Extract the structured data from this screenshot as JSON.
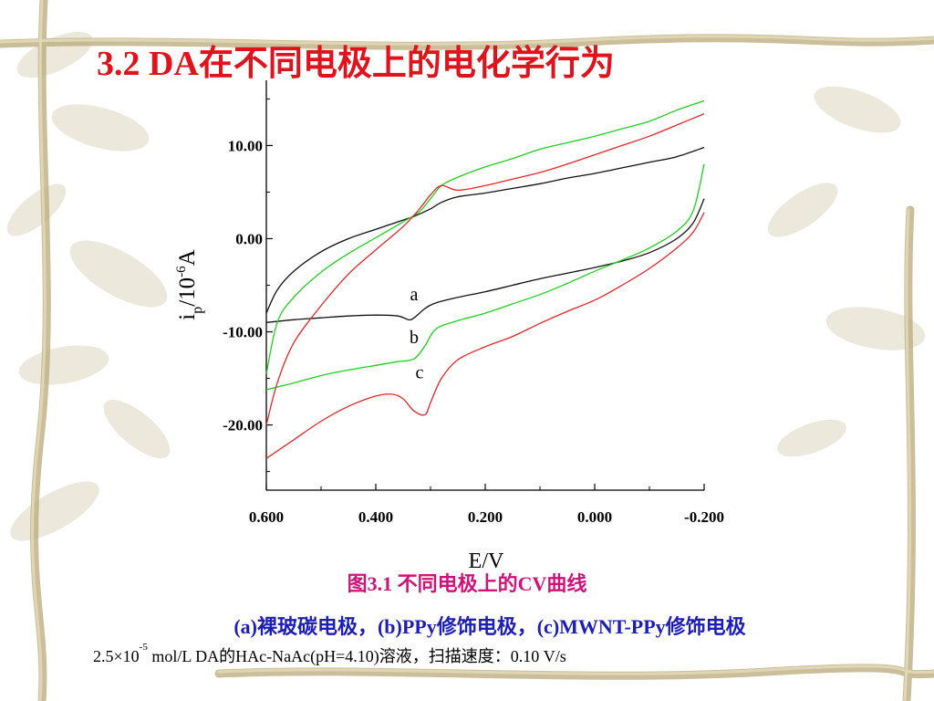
{
  "slide": {
    "title": "3.2  DA在不同电极上的电化学行为"
  },
  "captions": {
    "figure": "图3.1 不同电极上的CV曲线",
    "electrodes": "(a)裸玻碳电极，(b)PPy修饰电极，(c)MWNT-PPy修饰电极",
    "conditions_prefix": "2.5×10",
    "conditions_exp": "-5",
    "conditions_suffix": " mol/L DA的HAc-NaAc(pH=4.10)溶液，扫描速度：0.10 V/s"
  },
  "chart_data": {
    "type": "line",
    "title": "",
    "xlabel": "E/V",
    "ylabel_main": "i",
    "ylabel_sub": "p",
    "ylabel_rest": "/10",
    "ylabel_exp": "-6",
    "ylabel_unit": "A",
    "xlim": [
      0.6,
      -0.2
    ],
    "ylim": [
      -27,
      17
    ],
    "x_reversed": true,
    "x_ticks": [
      0.6,
      0.4,
      0.2,
      0.0,
      -0.2
    ],
    "x_tick_labels": [
      "0.600",
      "0.400",
      "0.200",
      "0.000",
      "-0.200"
    ],
    "y_ticks": [
      10,
      0,
      -10,
      -20
    ],
    "y_tick_labels": [
      "10.00",
      "0.00",
      "-10.00",
      "-20.00"
    ],
    "grid": false,
    "series_labels": [
      {
        "text": "a",
        "x": 0.33,
        "y": -6.6
      },
      {
        "text": "b",
        "x": 0.33,
        "y": -11.2
      },
      {
        "text": "c",
        "x": 0.32,
        "y": -15.0
      }
    ],
    "series": [
      {
        "id": "a",
        "color": "#111111",
        "forward": [
          [
            0.6,
            -9.0
          ],
          [
            0.55,
            -8.7
          ],
          [
            0.5,
            -8.5
          ],
          [
            0.45,
            -8.3
          ],
          [
            0.4,
            -8.2
          ],
          [
            0.36,
            -8.3
          ],
          [
            0.34,
            -8.7
          ],
          [
            0.33,
            -8.5
          ],
          [
            0.31,
            -7.5
          ],
          [
            0.29,
            -6.9
          ],
          [
            0.25,
            -6.3
          ],
          [
            0.2,
            -5.7
          ],
          [
            0.15,
            -5.0
          ],
          [
            0.1,
            -4.3
          ],
          [
            0.05,
            -3.7
          ],
          [
            0.0,
            -3.1
          ],
          [
            -0.05,
            -2.4
          ],
          [
            -0.1,
            -1.5
          ],
          [
            -0.15,
            0.0
          ],
          [
            -0.18,
            1.7
          ],
          [
            -0.2,
            4.3
          ]
        ],
        "reverse": [
          [
            -0.2,
            9.8
          ],
          [
            -0.15,
            8.8
          ],
          [
            -0.1,
            8.2
          ],
          [
            -0.05,
            7.6
          ],
          [
            0.0,
            7.0
          ],
          [
            0.05,
            6.5
          ],
          [
            0.1,
            5.9
          ],
          [
            0.15,
            5.4
          ],
          [
            0.2,
            4.9
          ],
          [
            0.25,
            4.5
          ],
          [
            0.28,
            3.9
          ],
          [
            0.3,
            3.2
          ],
          [
            0.33,
            2.4
          ],
          [
            0.35,
            2.0
          ],
          [
            0.4,
            1.0
          ],
          [
            0.45,
            0.0
          ],
          [
            0.5,
            -1.4
          ],
          [
            0.55,
            -3.5
          ],
          [
            0.58,
            -5.5
          ],
          [
            0.6,
            -8.0
          ]
        ]
      },
      {
        "id": "b",
        "color": "#1ed11e",
        "forward": [
          [
            0.6,
            -16.2
          ],
          [
            0.55,
            -15.5
          ],
          [
            0.5,
            -14.7
          ],
          [
            0.45,
            -14.1
          ],
          [
            0.4,
            -13.6
          ],
          [
            0.36,
            -13.2
          ],
          [
            0.33,
            -12.9
          ],
          [
            0.31,
            -11.5
          ],
          [
            0.29,
            -9.7
          ],
          [
            0.25,
            -8.8
          ],
          [
            0.2,
            -8.0
          ],
          [
            0.15,
            -7.0
          ],
          [
            0.1,
            -6.0
          ],
          [
            0.05,
            -4.8
          ],
          [
            0.0,
            -3.5
          ],
          [
            -0.05,
            -2.3
          ],
          [
            -0.1,
            -1.0
          ],
          [
            -0.15,
            0.8
          ],
          [
            -0.18,
            3.0
          ],
          [
            -0.2,
            8.0
          ]
        ],
        "reverse": [
          [
            -0.2,
            14.8
          ],
          [
            -0.15,
            13.8
          ],
          [
            -0.1,
            12.6
          ],
          [
            -0.05,
            11.8
          ],
          [
            0.0,
            11.0
          ],
          [
            0.05,
            10.3
          ],
          [
            0.1,
            9.6
          ],
          [
            0.15,
            8.6
          ],
          [
            0.2,
            7.7
          ],
          [
            0.25,
            6.6
          ],
          [
            0.28,
            5.7
          ],
          [
            0.3,
            4.3
          ],
          [
            0.32,
            2.9
          ],
          [
            0.35,
            1.8
          ],
          [
            0.4,
            0.1
          ],
          [
            0.45,
            -1.6
          ],
          [
            0.5,
            -3.6
          ],
          [
            0.55,
            -6.3
          ],
          [
            0.58,
            -9.0
          ],
          [
            0.6,
            -14.5
          ]
        ]
      },
      {
        "id": "c",
        "color": "#e8262a",
        "forward": [
          [
            0.6,
            -23.6
          ],
          [
            0.55,
            -21.6
          ],
          [
            0.5,
            -19.6
          ],
          [
            0.45,
            -18.0
          ],
          [
            0.4,
            -16.9
          ],
          [
            0.37,
            -16.7
          ],
          [
            0.35,
            -17.2
          ],
          [
            0.33,
            -18.5
          ],
          [
            0.31,
            -18.9
          ],
          [
            0.3,
            -17.6
          ],
          [
            0.28,
            -15.0
          ],
          [
            0.25,
            -13.0
          ],
          [
            0.2,
            -11.6
          ],
          [
            0.15,
            -10.5
          ],
          [
            0.1,
            -9.1
          ],
          [
            0.05,
            -7.8
          ],
          [
            0.0,
            -6.6
          ],
          [
            -0.05,
            -5.0
          ],
          [
            -0.1,
            -3.2
          ],
          [
            -0.15,
            -1.0
          ],
          [
            -0.18,
            0.7
          ],
          [
            -0.2,
            2.8
          ]
        ],
        "reverse": [
          [
            -0.2,
            13.4
          ],
          [
            -0.15,
            12.2
          ],
          [
            -0.1,
            11.0
          ],
          [
            -0.05,
            10.0
          ],
          [
            0.0,
            9.0
          ],
          [
            0.05,
            8.0
          ],
          [
            0.1,
            7.1
          ],
          [
            0.15,
            6.4
          ],
          [
            0.2,
            5.7
          ],
          [
            0.25,
            5.2
          ],
          [
            0.28,
            5.7
          ],
          [
            0.3,
            4.7
          ],
          [
            0.32,
            3.2
          ],
          [
            0.35,
            1.3
          ],
          [
            0.4,
            -1.2
          ],
          [
            0.45,
            -3.8
          ],
          [
            0.5,
            -7.2
          ],
          [
            0.55,
            -11.2
          ],
          [
            0.58,
            -15.5
          ],
          [
            0.6,
            -20.0
          ]
        ]
      }
    ]
  }
}
